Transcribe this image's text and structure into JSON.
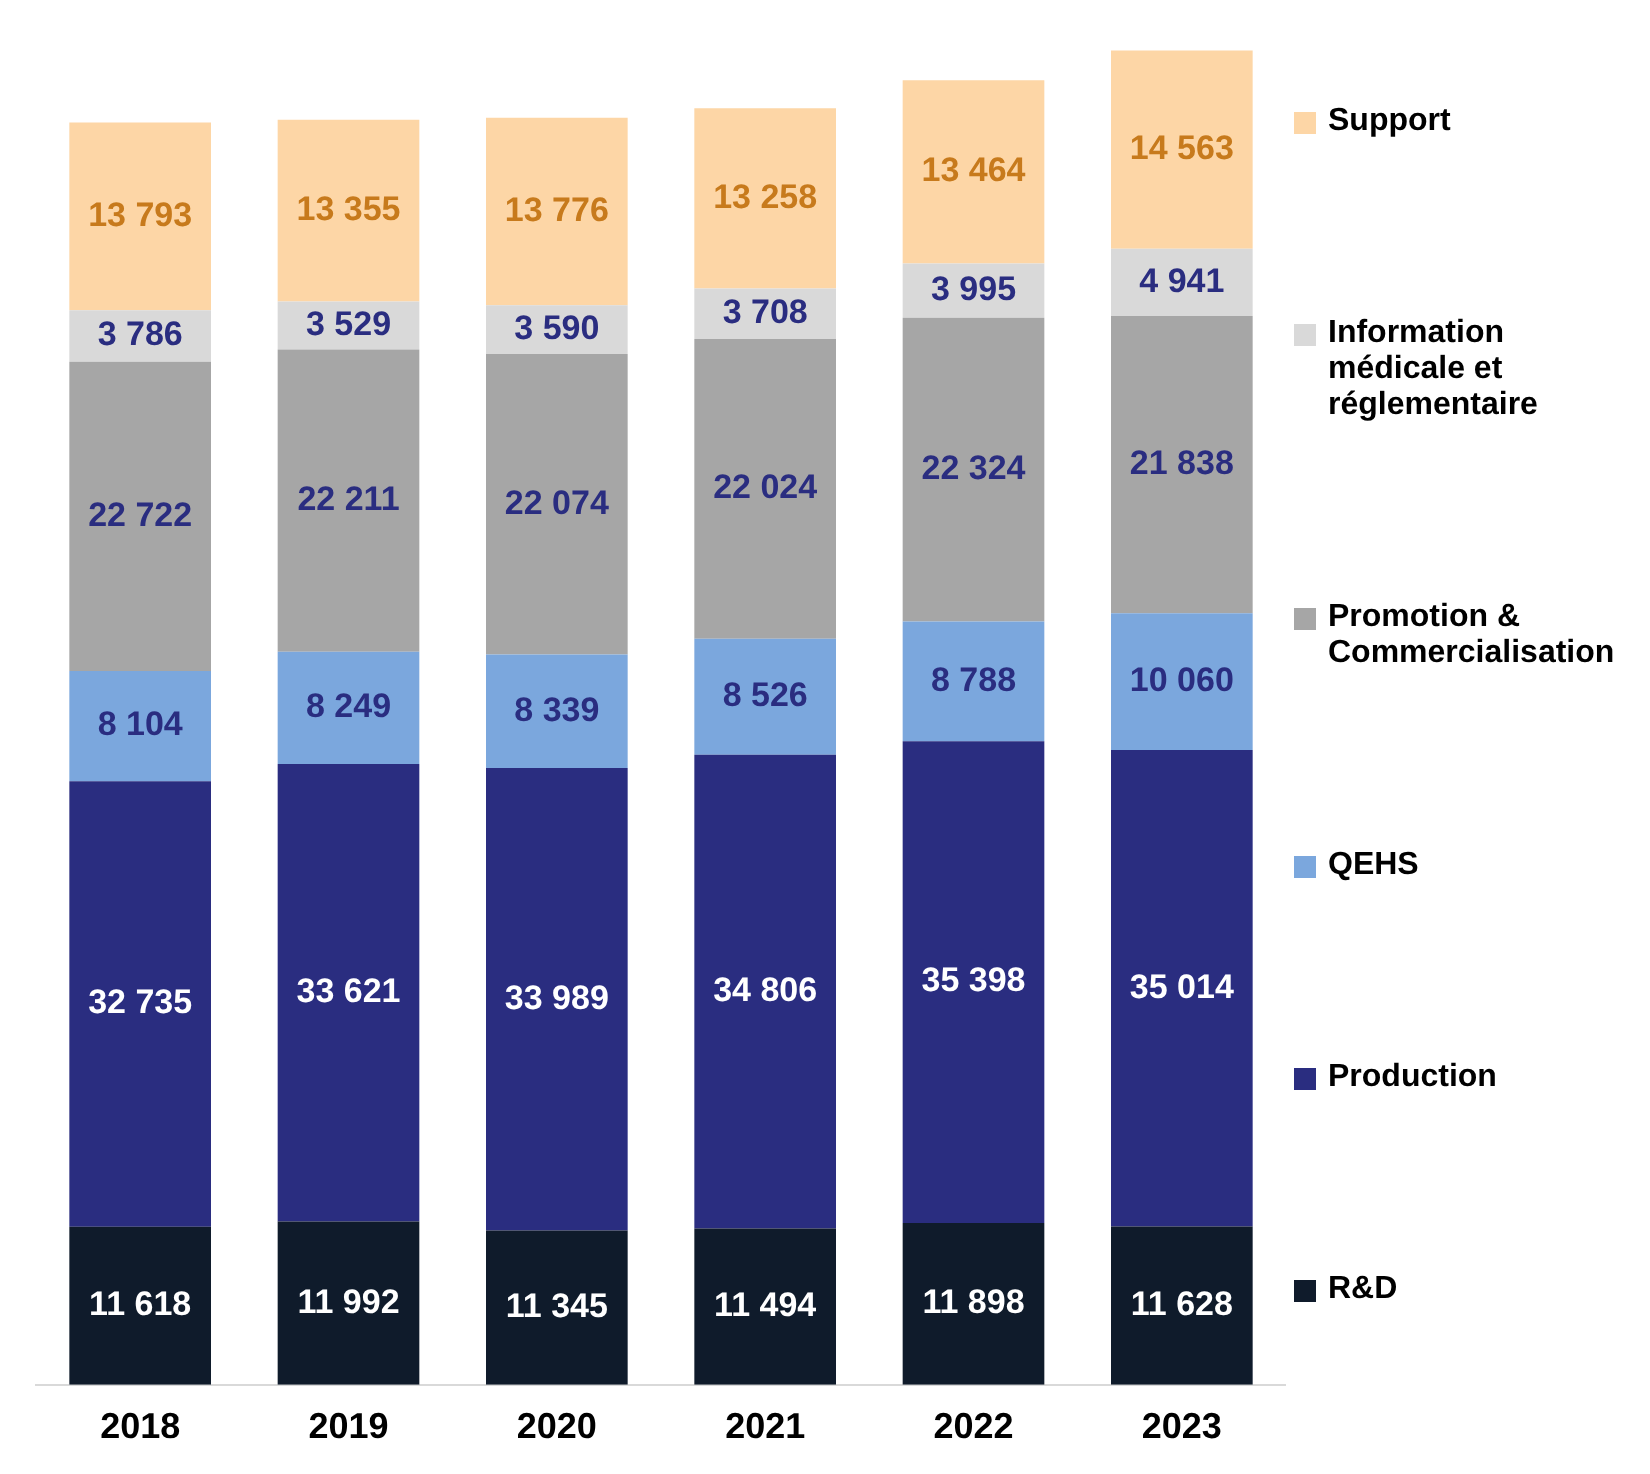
{
  "chart_data": {
    "type": "bar",
    "stacked": true,
    "data_labels": true,
    "legend": "right",
    "categories": [
      "2018",
      "2019",
      "2020",
      "2021",
      "2022",
      "2023"
    ],
    "series": [
      {
        "name": "R&D",
        "color": "#0f1b2b",
        "values": [
          11618,
          11992,
          11345,
          11494,
          11898,
          11628
        ]
      },
      {
        "name": "Production",
        "color": "#2a2d80",
        "values": [
          32735,
          33621,
          33989,
          34806,
          35398,
          35014
        ]
      },
      {
        "name": "QEHS",
        "color": "#7ba7dd",
        "values": [
          8104,
          8249,
          8339,
          8526,
          8788,
          10060
        ]
      },
      {
        "name": "Promotion & Commercialisation",
        "color": "#a6a6a6",
        "values": [
          22722,
          22211,
          22074,
          22024,
          22324,
          21838
        ]
      },
      {
        "name": "Information médicale et réglementaire",
        "color": "#d9d9d9",
        "values": [
          3786,
          3529,
          3590,
          3708,
          3995,
          4941
        ]
      },
      {
        "name": "Support",
        "color": "#fdd6a6",
        "values": [
          13793,
          13355,
          13776,
          13258,
          13464,
          14563
        ]
      }
    ]
  }
}
